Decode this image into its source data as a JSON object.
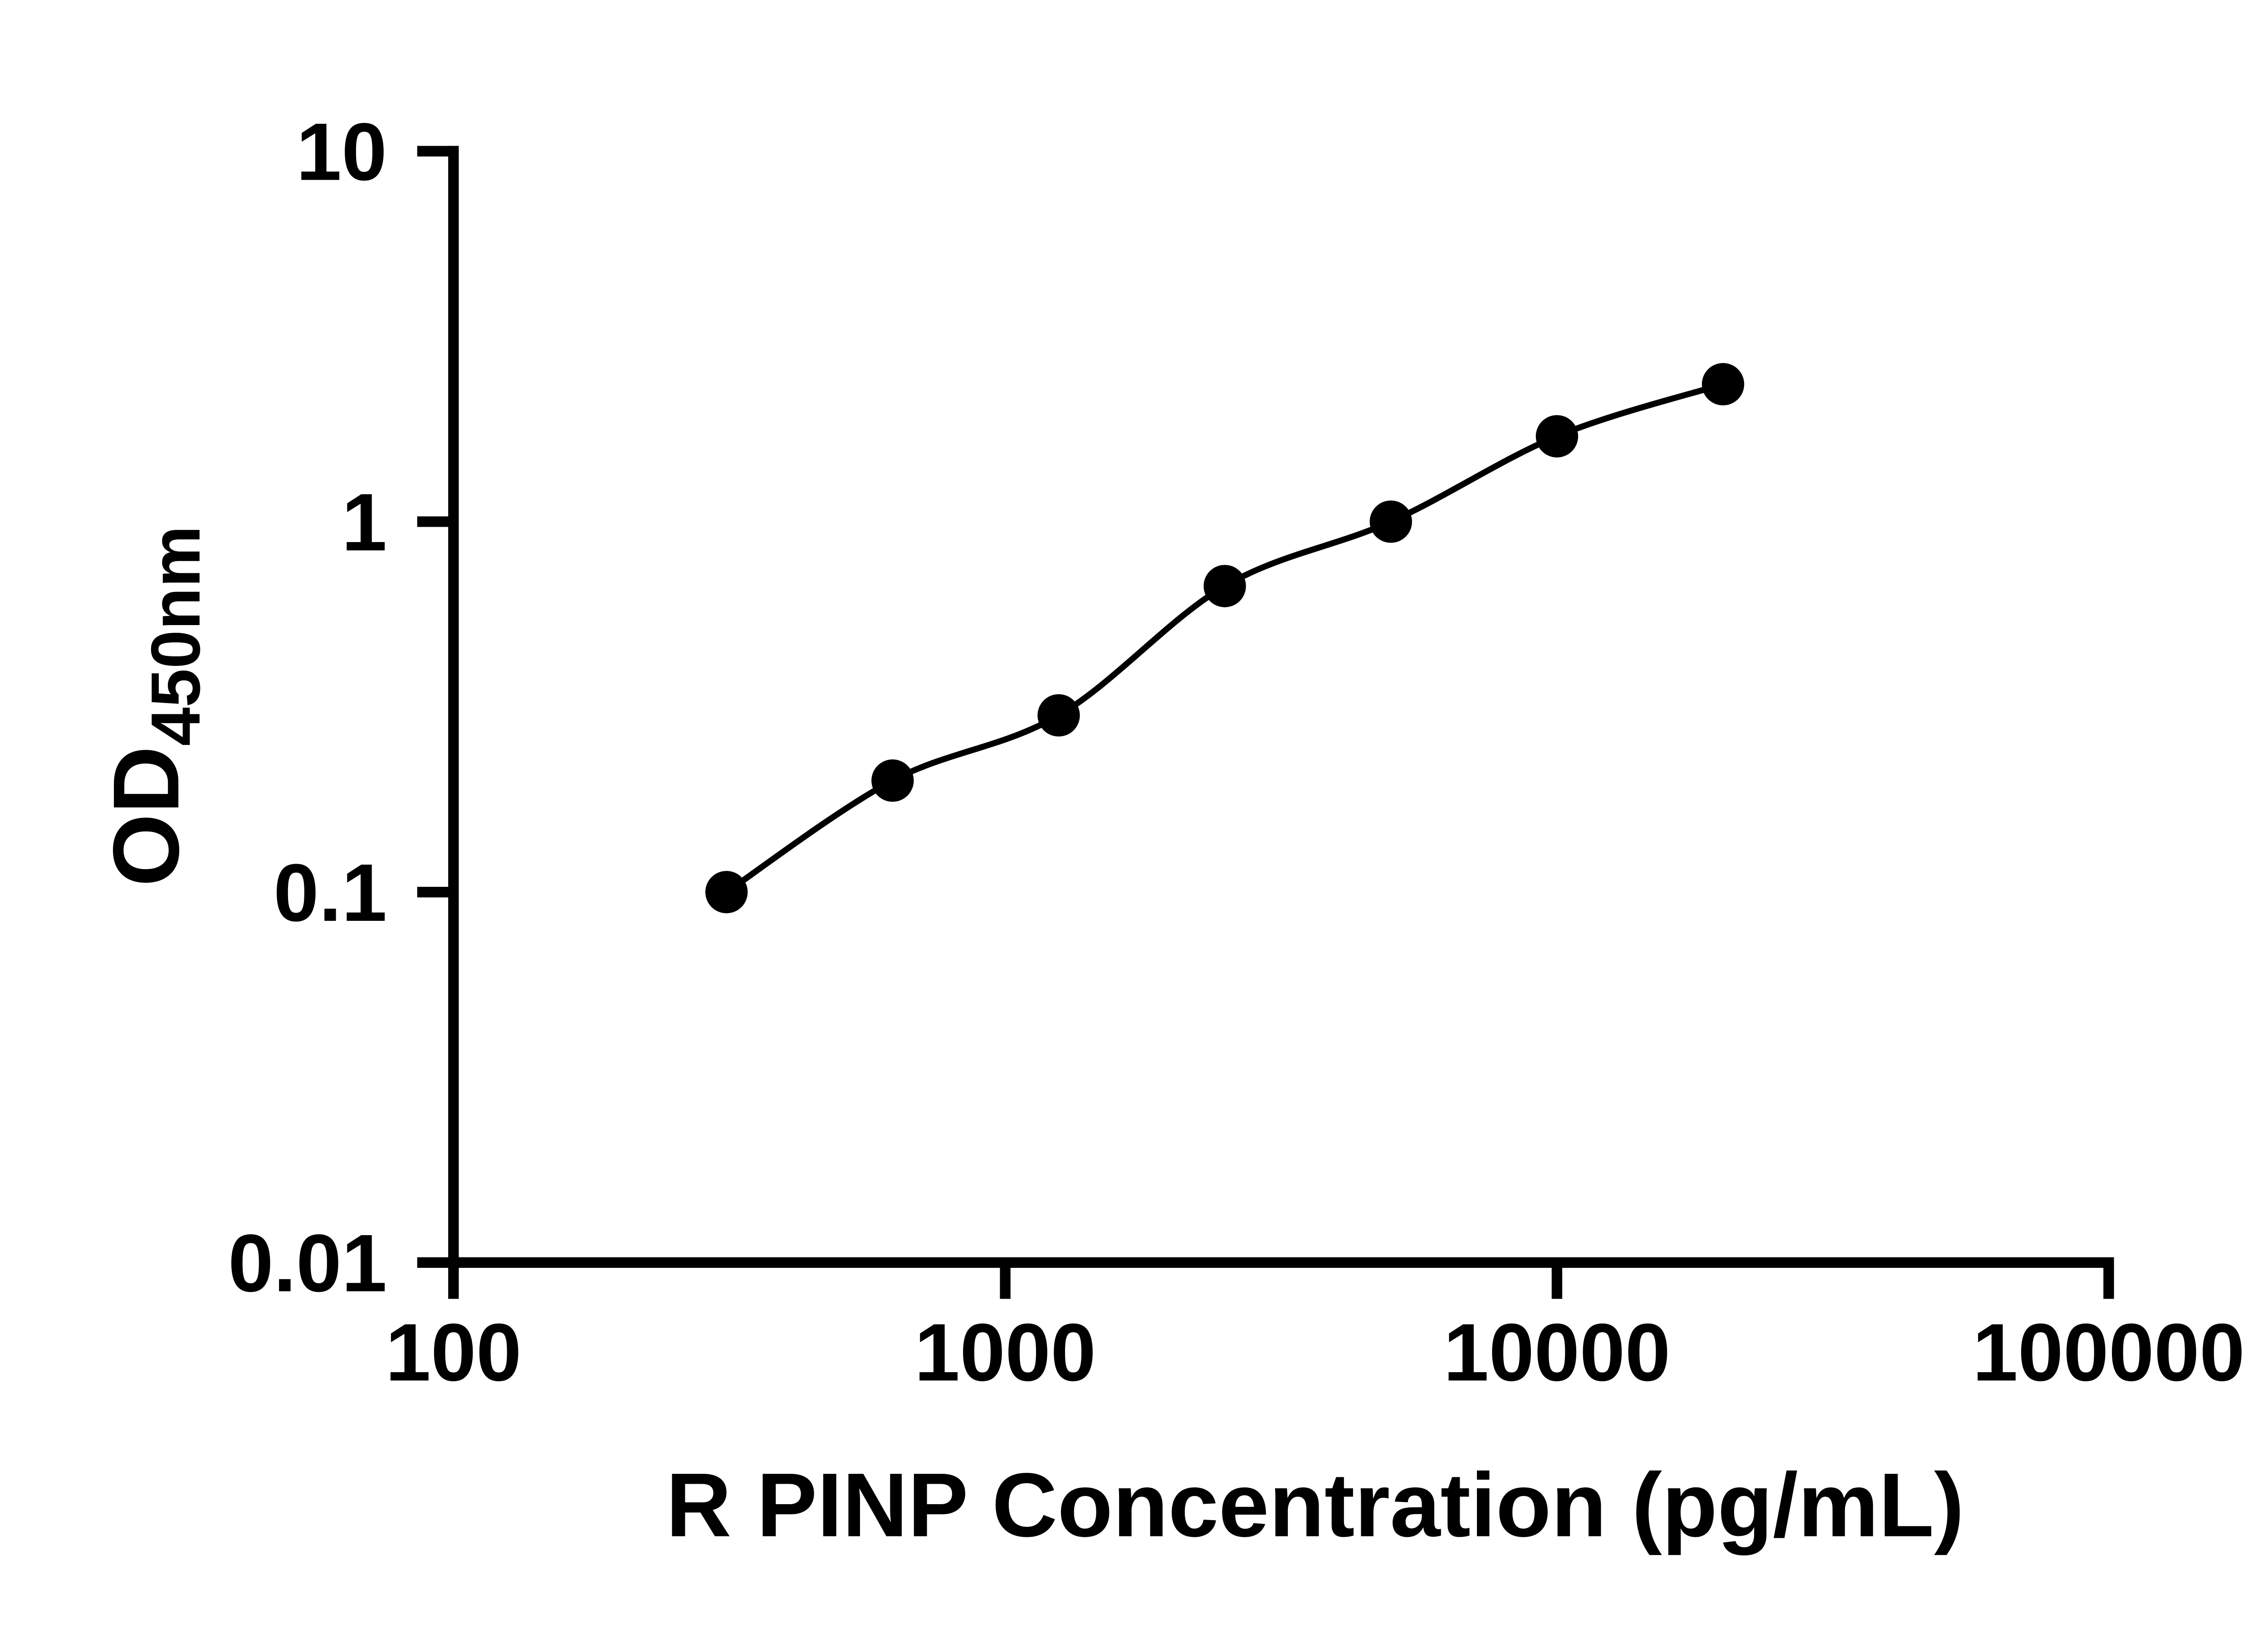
{
  "figure": {
    "background": "#ffffff"
  },
  "chart_data": {
    "type": "scatter",
    "subtype": "elisa-standard-curve-with-fit-line",
    "title": "",
    "xlabel": "R PINP Concentration (pg/mL)",
    "ylabel_main": "OD",
    "ylabel_sub": "450nm",
    "x_scale": "log10",
    "y_scale": "log10",
    "xlim": [
      100,
      100000
    ],
    "ylim": [
      0.01,
      10
    ],
    "x_ticks": [
      100,
      1000,
      10000,
      100000
    ],
    "x_tick_labels": [
      "100",
      "1000",
      "10000",
      "100000"
    ],
    "y_ticks": [
      0.01,
      0.1,
      1,
      10
    ],
    "y_tick_labels": [
      "0.01",
      "0.1",
      "1",
      "10"
    ],
    "grid": false,
    "legend": false,
    "series": [
      {
        "name": "standard-curve",
        "marker": "filled-circle",
        "line": "smooth-fit",
        "color": "#000000",
        "points": [
          {
            "x": 312.5,
            "y": 0.1
          },
          {
            "x": 625,
            "y": 0.2
          },
          {
            "x": 1250,
            "y": 0.3
          },
          {
            "x": 2500,
            "y": 0.67
          },
          {
            "x": 5000,
            "y": 1.0
          },
          {
            "x": 10000,
            "y": 1.7
          },
          {
            "x": 20000,
            "y": 2.35
          }
        ]
      }
    ],
    "colors": {
      "axis": "#000000",
      "text": "#000000",
      "marker": "#000000",
      "line": "#000000",
      "background": "#ffffff"
    }
  }
}
